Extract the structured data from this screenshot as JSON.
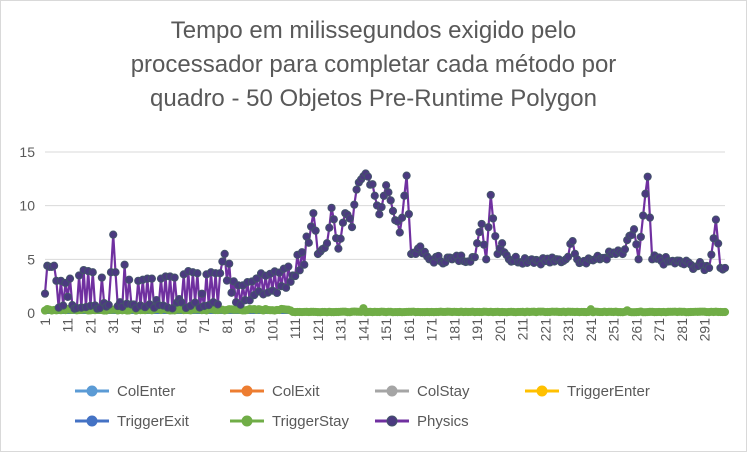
{
  "chart_data": {
    "type": "line",
    "title_lines": [
      "Tempo em milissegundos exigido pelo",
      "processador para completar cada método por",
      "quadro - 50 Objetos Pre-Runtime Polygon"
    ],
    "xlabel": "",
    "ylabel": "",
    "x_range": [
      1,
      300
    ],
    "x_tick_labels": [
      "1",
      "11",
      "21",
      "31",
      "41",
      "51",
      "61",
      "71",
      "81",
      "91",
      "101",
      "111",
      "121",
      "131",
      "141",
      "151",
      "161",
      "171",
      "181",
      "191",
      "201",
      "211",
      "221",
      "231",
      "241",
      "251",
      "261",
      "271",
      "281",
      "291"
    ],
    "ylim": [
      0,
      15
    ],
    "y_ticks": [
      0,
      5,
      10,
      15
    ],
    "grid": "horizontal",
    "legend_position": "bottom",
    "series": [
      {
        "name": "ColEnter",
        "color": "#5b9bd5",
        "constant": 0
      },
      {
        "name": "ColExit",
        "color": "#ed7d31",
        "constant": 0
      },
      {
        "name": "ColStay",
        "color": "#a5a5a5",
        "constant": 0
      },
      {
        "name": "TriggerEnter",
        "color": "#ffc000",
        "constant": 0
      },
      {
        "name": "TriggerExit",
        "color": "#4472c4",
        "constant": 0
      },
      {
        "name": "TriggerStay",
        "color": "#70ad47",
        "base": 0.1,
        "early_base": 0.3,
        "spikes": [
          [
            141,
            0.45
          ],
          [
            241,
            0.35
          ],
          [
            257,
            0.25
          ]
        ]
      },
      {
        "name": "Physics",
        "color": "#7030a0",
        "marker_color": "#44546a",
        "keypoints": [
          [
            1,
            1.8
          ],
          [
            3,
            4.3
          ],
          [
            5,
            4.4
          ],
          [
            7,
            0.5
          ],
          [
            11,
            1.5
          ],
          [
            14,
            0.4
          ],
          [
            17,
            0.5
          ],
          [
            22,
            3.8
          ],
          [
            24,
            0.4
          ],
          [
            28,
            0.6
          ],
          [
            31,
            7.3
          ],
          [
            34,
            1.0
          ],
          [
            36,
            4.5
          ],
          [
            40,
            0.8
          ],
          [
            50,
            1.2
          ],
          [
            60,
            1.3
          ],
          [
            70,
            1.8
          ],
          [
            75,
            1.0
          ],
          [
            79,
            4.8
          ],
          [
            85,
            1.0
          ],
          [
            95,
            2.0
          ],
          [
            105,
            2.5
          ],
          [
            110,
            3.5
          ],
          [
            115,
            4.5
          ],
          [
            119,
            9.3
          ],
          [
            121,
            5.5
          ],
          [
            125,
            6.5
          ],
          [
            127,
            9.8
          ],
          [
            130,
            6.0
          ],
          [
            133,
            9.3
          ],
          [
            136,
            8.0
          ],
          [
            138,
            11.5
          ],
          [
            142,
            13.0
          ],
          [
            145,
            12.0
          ],
          [
            148,
            9.2
          ],
          [
            151,
            11.9
          ],
          [
            154,
            9.5
          ],
          [
            157,
            7.5
          ],
          [
            160,
            12.8
          ],
          [
            162,
            5.5
          ],
          [
            165,
            6.0
          ],
          [
            170,
            5.0
          ],
          [
            180,
            5.0
          ],
          [
            190,
            5.2
          ],
          [
            193,
            8.3
          ],
          [
            195,
            5.0
          ],
          [
            197,
            11.0
          ],
          [
            200,
            5.5
          ],
          [
            202,
            6.5
          ],
          [
            205,
            5.0
          ],
          [
            215,
            5.0
          ],
          [
            225,
            4.8
          ],
          [
            230,
            5.0
          ],
          [
            233,
            6.7
          ],
          [
            235,
            5.0
          ],
          [
            245,
            5.0
          ],
          [
            250,
            5.5
          ],
          [
            255,
            5.5
          ],
          [
            260,
            7.8
          ],
          [
            262,
            5.0
          ],
          [
            266,
            12.7
          ],
          [
            268,
            5.0
          ],
          [
            275,
            4.8
          ],
          [
            285,
            4.5
          ],
          [
            293,
            4.2
          ],
          [
            296,
            8.7
          ],
          [
            298,
            4.2
          ],
          [
            300,
            4.2
          ]
        ],
        "early_high": [
          4.4,
          4.3,
          3.0,
          2.8,
          3.2,
          3.5,
          4.0,
          3.9,
          3.5,
          3.3,
          3.0,
          3.8,
          4.5,
          4.2,
          3.1,
          3.0,
          3.1,
          3.2,
          3.3,
          3.2,
          3.4,
          3.3,
          3.6,
          3.9,
          3.8,
          3.7,
          3.6,
          3.8,
          3.7,
          3.9
        ]
      }
    ],
    "legend": [
      "ColEnter",
      "ColExit",
      "ColStay",
      "TriggerEnter",
      "TriggerExit",
      "TriggerStay",
      "Physics"
    ]
  }
}
